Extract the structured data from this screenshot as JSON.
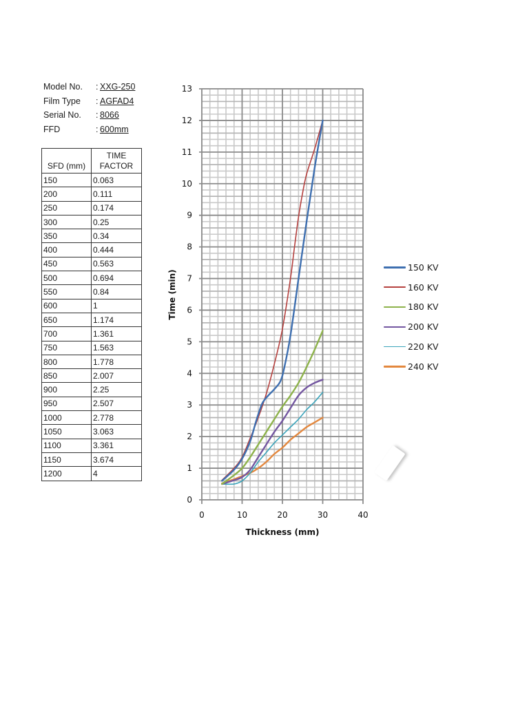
{
  "info": {
    "rows": [
      {
        "label": "Model No.",
        "sep": ":",
        "value": "XXG-250"
      },
      {
        "label": "Film Type",
        "sep": ":",
        "value": "AGFAD4"
      },
      {
        "label": "Serial No.",
        "sep": ":",
        "value": "8066"
      },
      {
        "label": "FFD",
        "sep": ":",
        "value": "600mm"
      }
    ]
  },
  "time_factor_table": {
    "headers": [
      "SFD (mm)",
      "TIME\nFACTOR"
    ],
    "header_sfd": "SFD (mm)",
    "header_tf_line1": "TIME",
    "header_tf_line2": "FACTOR",
    "rows": [
      [
        "150",
        "0.063"
      ],
      [
        "200",
        "0.111"
      ],
      [
        "250",
        "0.174"
      ],
      [
        "300",
        "0.25"
      ],
      [
        "350",
        "0.34"
      ],
      [
        "400",
        "0.444"
      ],
      [
        "450",
        "0.563"
      ],
      [
        "500",
        "0.694"
      ],
      [
        "550",
        "0.84"
      ],
      [
        "600",
        "1"
      ],
      [
        "650",
        "1.174"
      ],
      [
        "700",
        "1.361"
      ],
      [
        "750",
        "1.563"
      ],
      [
        "800",
        "1.778"
      ],
      [
        "850",
        "2.007"
      ],
      [
        "900",
        "2.25"
      ],
      [
        "950",
        "2.507"
      ],
      [
        "1000",
        "2.778"
      ],
      [
        "1050",
        "3.063"
      ],
      [
        "1100",
        "3.361"
      ],
      [
        "1150",
        "3.674"
      ],
      [
        "1200",
        "4"
      ]
    ]
  },
  "chart_data": {
    "type": "line",
    "title": "",
    "xlabel": "Thickness (mm)",
    "ylabel": "Time (min)",
    "xlim": [
      0,
      40
    ],
    "ylim": [
      0,
      13
    ],
    "xticks": [
      0,
      10,
      20,
      30,
      40
    ],
    "yticks": [
      0,
      1,
      2,
      3,
      4,
      5,
      6,
      7,
      8,
      9,
      10,
      11,
      12,
      13
    ],
    "grid": true,
    "legend_position": "right",
    "series": [
      {
        "name": "150 KV",
        "color": "#3e6fb0",
        "width": 2.4,
        "points": [
          [
            5,
            0.6
          ],
          [
            8,
            0.95
          ],
          [
            10,
            1.3
          ],
          [
            12,
            1.85
          ],
          [
            13.5,
            2.5
          ],
          [
            15,
            3.05
          ],
          [
            16.5,
            3.3
          ],
          [
            18,
            3.5
          ],
          [
            19.5,
            3.75
          ],
          [
            20.5,
            4.2
          ],
          [
            22,
            5.2
          ],
          [
            24,
            7.0
          ],
          [
            26,
            8.8
          ],
          [
            28,
            10.5
          ],
          [
            30,
            12.0
          ]
        ]
      },
      {
        "name": "160 KV",
        "color": "#b5403e",
        "width": 1.6,
        "points": [
          [
            5,
            0.62
          ],
          [
            8,
            1.0
          ],
          [
            10,
            1.35
          ],
          [
            12,
            1.95
          ],
          [
            14,
            2.6
          ],
          [
            16,
            3.35
          ],
          [
            18,
            4.3
          ],
          [
            20,
            5.4
          ],
          [
            22,
            7.0
          ],
          [
            23,
            8.0
          ],
          [
            24,
            8.95
          ],
          [
            25,
            9.7
          ],
          [
            26,
            10.3
          ],
          [
            28,
            11.1
          ],
          [
            30,
            12.0
          ]
        ]
      },
      {
        "name": "180 KV",
        "color": "#8db24a",
        "width": 2.4,
        "points": [
          [
            5,
            0.5
          ],
          [
            8,
            0.78
          ],
          [
            10,
            1.0
          ],
          [
            12,
            1.35
          ],
          [
            15,
            1.95
          ],
          [
            18,
            2.55
          ],
          [
            20,
            2.95
          ],
          [
            22,
            3.3
          ],
          [
            24,
            3.7
          ],
          [
            26,
            4.2
          ],
          [
            28,
            4.75
          ],
          [
            30,
            5.35
          ]
        ]
      },
      {
        "name": "200 KV",
        "color": "#7356a0",
        "width": 2.4,
        "points": [
          [
            5,
            0.5
          ],
          [
            8,
            0.62
          ],
          [
            10,
            0.72
          ],
          [
            12,
            0.95
          ],
          [
            14,
            1.35
          ],
          [
            16,
            1.75
          ],
          [
            18,
            2.15
          ],
          [
            20,
            2.5
          ],
          [
            22,
            2.9
          ],
          [
            24,
            3.3
          ],
          [
            26,
            3.55
          ],
          [
            28,
            3.7
          ],
          [
            30,
            3.8
          ]
        ]
      },
      {
        "name": "220 KV",
        "color": "#3aa3ba",
        "width": 1.6,
        "points": [
          [
            5,
            0.5
          ],
          [
            8,
            0.5
          ],
          [
            10,
            0.6
          ],
          [
            12,
            0.85
          ],
          [
            14,
            1.2
          ],
          [
            16,
            1.5
          ],
          [
            18,
            1.8
          ],
          [
            20,
            2.05
          ],
          [
            22,
            2.3
          ],
          [
            24,
            2.55
          ],
          [
            26,
            2.85
          ],
          [
            28,
            3.1
          ],
          [
            30,
            3.4
          ]
        ]
      },
      {
        "name": "240 KV",
        "color": "#e3873d",
        "width": 2.4,
        "points": [
          [
            5,
            0.52
          ],
          [
            8,
            0.65
          ],
          [
            10,
            0.75
          ],
          [
            12,
            0.85
          ],
          [
            14,
            1.0
          ],
          [
            16,
            1.2
          ],
          [
            18,
            1.45
          ],
          [
            20,
            1.65
          ],
          [
            22,
            1.9
          ],
          [
            24,
            2.1
          ],
          [
            26,
            2.3
          ],
          [
            28,
            2.45
          ],
          [
            30,
            2.6
          ]
        ]
      }
    ]
  }
}
